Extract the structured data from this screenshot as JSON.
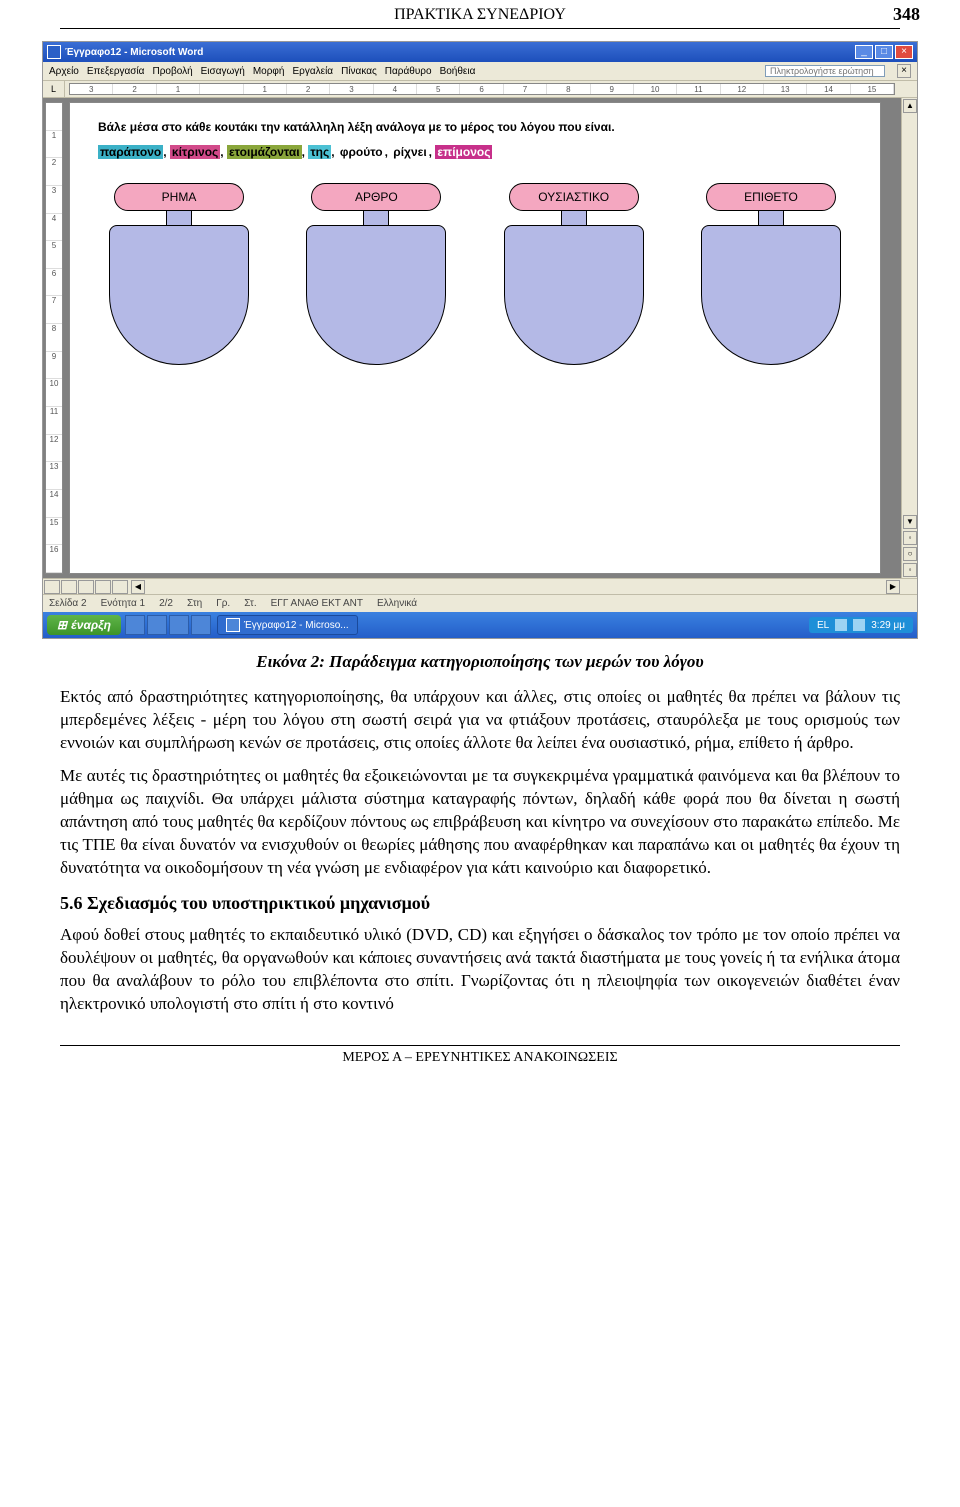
{
  "header": {
    "title": "ΠΡΑΚΤΙΚΑ ΣΥΝΕΔΡΙΟΥ",
    "page_number": "348"
  },
  "footer": {
    "text": "ΜΕΡΟΣ Α – ΕΡΕΥΝΗΤΙΚΕΣ ΑΝΑΚΟΙΝΩΣΕΙΣ"
  },
  "word": {
    "title": "Έγγραφο12 - Microsoft Word",
    "menus": [
      "Αρχείο",
      "Επεξεργασία",
      "Προβολή",
      "Εισαγωγή",
      "Μορφή",
      "Εργαλεία",
      "Πίνακας",
      "Παράθυρο",
      "Βοήθεια"
    ],
    "helpbox_placeholder": "Πληκτρολογήστε ερώτηση",
    "hruler": [
      "3",
      "2",
      "1",
      "",
      "1",
      "2",
      "3",
      "4",
      "5",
      "6",
      "7",
      "8",
      "9",
      "10",
      "11",
      "12",
      "13",
      "14",
      "15"
    ],
    "vruler": [
      "",
      "1",
      "2",
      "3",
      "4",
      "5",
      "6",
      "7",
      "8",
      "9",
      "10",
      "11",
      "12",
      "13",
      "14",
      "15",
      "16"
    ],
    "instruction": "Βάλε μέσα στο κάθε κουτάκι την κατάλληλη λέξη ανάλογα με το μέρος του λόγου που είναι.",
    "words": [
      {
        "text": "παράπονο",
        "bg": "#3bb1c7",
        "fg": "#000"
      },
      {
        "text": "κίτρινος",
        "bg": "#d24a8a",
        "fg": "#000"
      },
      {
        "text": "ετοιμάζονται",
        "bg": "#8aa63b",
        "fg": "#000"
      },
      {
        "text": "της",
        "bg": "#4cc1d4",
        "fg": "#000"
      },
      {
        "text": "φρούτο",
        "bg": "#ffffff",
        "fg": "#000"
      },
      {
        "text": "ρίχνει",
        "bg": "#ffffff",
        "fg": "#000"
      },
      {
        "text": "επίμονος",
        "bg": "#c7308a",
        "fg": "#fff"
      }
    ],
    "shapes": [
      "ΡΗΜΑ",
      "ΑΡΘΡΟ",
      "ΟΥΣΙΑΣΤΙΚΟ",
      "ΕΠΙΘΕΤΟ"
    ],
    "shape_cap_color": "#f4a7c0",
    "shape_body_color": "#b4b9e6",
    "statusbar": {
      "page": "Σελίδα 2",
      "section": "Ενότητα 1",
      "pages": "2/2",
      "at": "Στη",
      "ln": "Γρ.",
      "col": "Στ.",
      "modes": "ΕΓΓ  ΑΝΑΘ  ΕΚΤ  ΑΝΤ",
      "lang": "Ελληνικά"
    },
    "taskbar": {
      "start": "έναρξη",
      "task": "Έγγραφο12 - Microso...",
      "lang": "EL",
      "time": "3:29 μμ"
    }
  },
  "doc": {
    "caption": "Εικόνα 2: Παράδειγμα κατηγοριοποίησης των μερών του λόγου",
    "p1": "Εκτός από δραστηριότητες κατηγοριοποίησης, θα υπάρχουν και άλλες, στις οποίες οι μαθητές θα πρέπει να βάλουν τις μπερδεμένες λέξεις - μέρη του λόγου στη σωστή σειρά για να φτιάξουν προτάσεις, σταυρόλεξα με τους ορισμούς των εννοιών και συμπλήρωση κενών σε προτάσεις, στις οποίες άλλοτε θα λείπει ένα ουσιαστικό, ρήμα, επίθετο ή άρθρο.",
    "p2": "Με αυτές τις δραστηριότητες οι μαθητές θα εξοικειώνονται με τα συγκεκριμένα γραμματικά φαινόμενα και θα βλέπουν το μάθημα ως παιχνίδι. Θα υπάρχει μάλιστα σύστημα καταγραφής πόντων, δηλαδή κάθε φορά που θα δίνεται η σωστή απάντηση από τους μαθητές θα κερδίζουν πόντους ως επιβράβευση και κίνητρο να συνεχίσουν στο παρακάτω επίπεδο. Με τις ΤΠΕ θα είναι δυνατόν να ενισχυθούν οι θεωρίες μάθησης που αναφέρθηκαν και παραπάνω και οι μαθητές θα έχουν τη δυνατότητα να οικοδομήσουν τη νέα γνώση με ενδιαφέρον για κάτι καινούριο και διαφορετικό.",
    "h3": "5.6 Σχεδιασμός του υποστηρικτικού μηχανισμού",
    "p3": "Αφού δοθεί στους μαθητές το εκπαιδευτικό υλικό (DVD, CD) και εξηγήσει ο δάσκαλος τον τρόπο με τον οποίο πρέπει να δουλέψουν οι μαθητές, θα οργανωθούν και κάποιες συναντήσεις ανά τακτά διαστήματα με τους γονείς ή τα ενήλικα άτομα που θα αναλάβουν το ρόλο του επιβλέποντα στο σπίτι. Γνωρίζοντας ότι η πλειοψηφία των οικογενειών διαθέτει έναν ηλεκτρονικό υπολογιστή στο σπίτι ή στο κοντινό"
  }
}
